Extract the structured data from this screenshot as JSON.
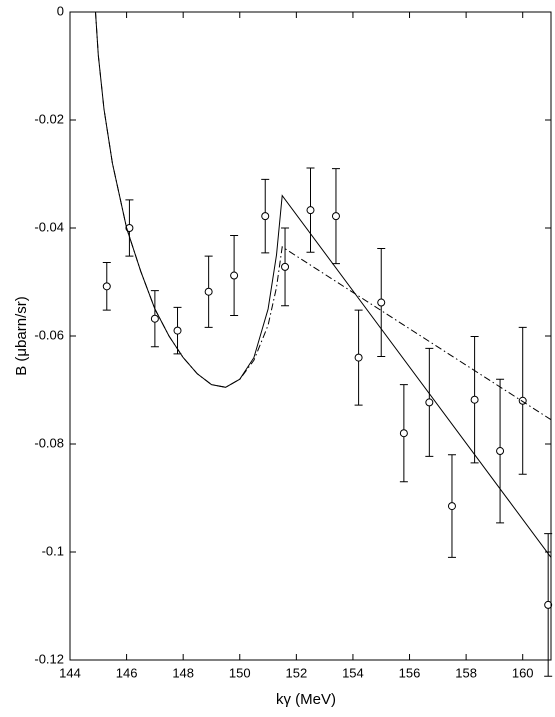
{
  "chart_data": {
    "type": "scatter",
    "xlabel": "kγ   (MeV)",
    "ylabel": "B  (μbarn/sr)",
    "x": [
      145.3,
      146.1,
      147.0,
      147.8,
      148.9,
      149.8,
      150.9,
      151.6,
      152.5,
      153.4,
      154.2,
      155.0,
      155.8,
      156.7,
      157.5,
      158.3,
      159.2,
      160.0,
      160.9
    ],
    "values": [
      -0.0508,
      -0.04,
      -0.0568,
      -0.059,
      -0.0518,
      -0.0488,
      -0.0378,
      -0.0472,
      -0.0367,
      -0.0378,
      -0.064,
      -0.0538,
      -0.078,
      -0.0723,
      -0.0915,
      -0.0718,
      -0.0813,
      -0.072,
      -0.1098
    ],
    "errors": [
      0.0044,
      0.0052,
      0.0052,
      0.0043,
      0.0066,
      0.0074,
      0.0068,
      0.0072,
      0.0078,
      0.0088,
      0.0088,
      0.01,
      0.009,
      0.01,
      0.0095,
      0.0117,
      0.0133,
      0.0136,
      0.0132
    ],
    "curves": [
      {
        "style": "solid",
        "x": [
          144.9,
          145.0,
          145.2,
          145.5,
          146.0,
          146.5,
          147.0,
          147.5,
          148.0,
          148.5,
          149.0,
          149.5,
          150.0,
          150.5,
          151.0,
          151.3,
          151.5,
          161.0
        ],
        "values": [
          0,
          -0.008,
          -0.018,
          -0.028,
          -0.04,
          -0.048,
          -0.055,
          -0.06,
          -0.064,
          -0.067,
          -0.069,
          -0.0695,
          -0.068,
          -0.064,
          -0.055,
          -0.045,
          -0.034,
          -0.101
        ]
      },
      {
        "style": "dashdot",
        "x": [
          144.9,
          145.0,
          145.2,
          145.5,
          146.0,
          146.5,
          147.0,
          147.5,
          148.0,
          148.5,
          149.0,
          149.5,
          150.0,
          150.5,
          151.0,
          151.3,
          151.5,
          161.0
        ],
        "values": [
          0,
          -0.008,
          -0.018,
          -0.028,
          -0.04,
          -0.048,
          -0.055,
          -0.06,
          -0.064,
          -0.067,
          -0.069,
          -0.0695,
          -0.068,
          -0.0645,
          -0.058,
          -0.051,
          -0.0435,
          -0.0755
        ]
      }
    ],
    "color": "#000000",
    "xlim": [
      144,
      161
    ],
    "xticks": [
      144,
      146,
      148,
      150,
      152,
      154,
      156,
      158,
      160
    ],
    "ylim": [
      -0.12,
      0
    ],
    "yticks": [
      0,
      -0.02,
      -0.04,
      -0.06,
      -0.08,
      -0.1,
      -0.12
    ]
  }
}
